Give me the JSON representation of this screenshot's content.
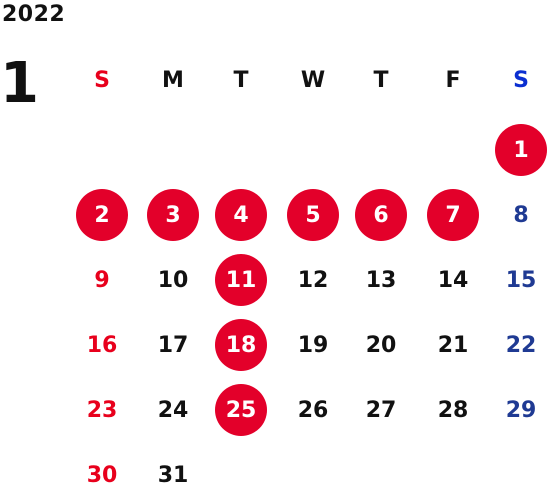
{
  "calendar": {
    "year": "2022",
    "month": "1",
    "weekday_headers": [
      {
        "label": "S",
        "color": "#e8001c"
      },
      {
        "label": "M",
        "color": "#111111"
      },
      {
        "label": "T",
        "color": "#111111"
      },
      {
        "label": "W",
        "color": "#111111"
      },
      {
        "label": "T",
        "color": "#111111"
      },
      {
        "label": "F",
        "color": "#111111"
      },
      {
        "label": "S",
        "color": "#0b2fd1"
      }
    ],
    "colors": {
      "sunday": "#e8001c",
      "saturday": "#1f3a93",
      "weekday": "#111111",
      "highlight_bg": "#e3002a",
      "highlight_text": "#ffffff"
    },
    "days": [
      {
        "day": "1",
        "weekday": 6,
        "highlighted": true
      },
      {
        "day": "2",
        "weekday": 0,
        "highlighted": true
      },
      {
        "day": "3",
        "weekday": 1,
        "highlighted": true
      },
      {
        "day": "4",
        "weekday": 2,
        "highlighted": true
      },
      {
        "day": "5",
        "weekday": 3,
        "highlighted": true
      },
      {
        "day": "6",
        "weekday": 4,
        "highlighted": true
      },
      {
        "day": "7",
        "weekday": 5,
        "highlighted": true
      },
      {
        "day": "8",
        "weekday": 6,
        "highlighted": false
      },
      {
        "day": "9",
        "weekday": 0,
        "highlighted": false
      },
      {
        "day": "10",
        "weekday": 1,
        "highlighted": false
      },
      {
        "day": "11",
        "weekday": 2,
        "highlighted": true
      },
      {
        "day": "12",
        "weekday": 3,
        "highlighted": false
      },
      {
        "day": "13",
        "weekday": 4,
        "highlighted": false
      },
      {
        "day": "14",
        "weekday": 5,
        "highlighted": false
      },
      {
        "day": "15",
        "weekday": 6,
        "highlighted": false
      },
      {
        "day": "16",
        "weekday": 0,
        "highlighted": false
      },
      {
        "day": "17",
        "weekday": 1,
        "highlighted": false
      },
      {
        "day": "18",
        "weekday": 2,
        "highlighted": true
      },
      {
        "day": "19",
        "weekday": 3,
        "highlighted": false
      },
      {
        "day": "20",
        "weekday": 4,
        "highlighted": false
      },
      {
        "day": "21",
        "weekday": 5,
        "highlighted": false
      },
      {
        "day": "22",
        "weekday": 6,
        "highlighted": false
      },
      {
        "day": "23",
        "weekday": 0,
        "highlighted": false
      },
      {
        "day": "24",
        "weekday": 1,
        "highlighted": false
      },
      {
        "day": "25",
        "weekday": 2,
        "highlighted": true
      },
      {
        "day": "26",
        "weekday": 3,
        "highlighted": false
      },
      {
        "day": "27",
        "weekday": 4,
        "highlighted": false
      },
      {
        "day": "28",
        "weekday": 5,
        "highlighted": false
      },
      {
        "day": "29",
        "weekday": 6,
        "highlighted": false
      },
      {
        "day": "30",
        "weekday": 0,
        "highlighted": false
      },
      {
        "day": "31",
        "weekday": 1,
        "highlighted": false
      }
    ]
  }
}
